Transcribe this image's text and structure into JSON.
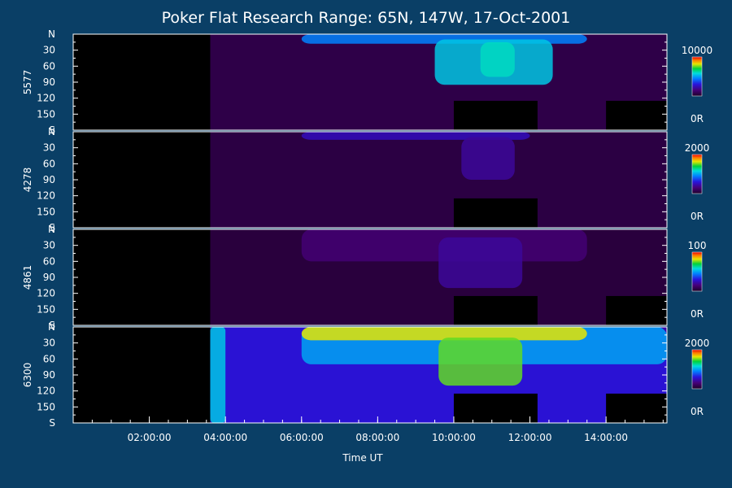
{
  "chart_data": {
    "type": "heatmap",
    "title": "Poker Flat Research Range: 65N, 147W, 17-Oct-2001",
    "xlabel": "Time UT",
    "x_range_hours": [
      0.0,
      15.6
    ],
    "x_ticks": [
      {
        "hour": 2,
        "label": "02:00:00"
      },
      {
        "hour": 4,
        "label": "04:00:00"
      },
      {
        "hour": 6,
        "label": "06:00:00"
      },
      {
        "hour": 8,
        "label": "08:00:00"
      },
      {
        "hour": 10,
        "label": "10:00:00"
      },
      {
        "hour": 12,
        "label": "12:00:00"
      },
      {
        "hour": 14,
        "label": "14:00:00"
      }
    ],
    "y_ticks": [
      "N",
      "30",
      "60",
      "90",
      "120",
      "150",
      "S"
    ],
    "y_range": [
      0,
      180
    ],
    "data_gap_end_hour": 3.6,
    "panels": [
      {
        "name": "5577",
        "cbar_max": "10000",
        "cbar_min": "0R",
        "base_level": 0.06,
        "features": [
          {
            "t0": 6.0,
            "t1": 13.5,
            "a0": 0,
            "a1": 18,
            "level": 0.45
          },
          {
            "t0": 9.5,
            "t1": 12.6,
            "a0": 10,
            "a1": 95,
            "level": 0.55
          },
          {
            "t0": 10.7,
            "t1": 11.6,
            "a0": 15,
            "a1": 80,
            "level": 0.6
          }
        ],
        "blank_blocks": [
          {
            "t0": 10.0,
            "t1": 12.2,
            "a0": 125,
            "a1": 180
          },
          {
            "t0": 14.0,
            "t1": 15.6,
            "a0": 125,
            "a1": 180
          }
        ]
      },
      {
        "name": "4278",
        "cbar_max": "2000",
        "cbar_min": "0R",
        "base_level": 0.05,
        "features": [
          {
            "t0": 6.0,
            "t1": 12.0,
            "a0": 0,
            "a1": 15,
            "level": 0.25
          },
          {
            "t0": 10.2,
            "t1": 11.6,
            "a0": 10,
            "a1": 90,
            "level": 0.2
          }
        ],
        "blank_blocks": [
          {
            "t0": 10.0,
            "t1": 12.2,
            "a0": 125,
            "a1": 180
          }
        ]
      },
      {
        "name": "4861",
        "cbar_max": "100",
        "cbar_min": "0R",
        "base_level": 0.04,
        "features": [
          {
            "t0": 6.0,
            "t1": 13.5,
            "a0": 0,
            "a1": 60,
            "level": 0.14
          },
          {
            "t0": 9.6,
            "t1": 11.8,
            "a0": 15,
            "a1": 110,
            "level": 0.2
          }
        ],
        "blank_blocks": [
          {
            "t0": 10.0,
            "t1": 12.2,
            "a0": 125,
            "a1": 180
          },
          {
            "t0": 14.0,
            "t1": 15.6,
            "a0": 125,
            "a1": 180
          }
        ]
      },
      {
        "name": "6300",
        "cbar_max": "2000",
        "cbar_min": "0R",
        "base_level": 0.22,
        "features": [
          {
            "t0": 3.6,
            "t1": 15.6,
            "a0": 0,
            "a1": 180,
            "level": 0.3
          },
          {
            "t0": 6.0,
            "t1": 15.6,
            "a0": 0,
            "a1": 70,
            "level": 0.5
          },
          {
            "t0": 6.0,
            "t1": 13.5,
            "a0": 0,
            "a1": 25,
            "level": 0.82
          },
          {
            "t0": 9.6,
            "t1": 11.8,
            "a0": 20,
            "a1": 110,
            "level": 0.75
          },
          {
            "t0": 3.6,
            "t1": 4.0,
            "a0": 0,
            "a1": 180,
            "level": 0.55
          }
        ],
        "blank_blocks": [
          {
            "t0": 10.0,
            "t1": 12.2,
            "a0": 125,
            "a1": 180
          },
          {
            "t0": 14.0,
            "t1": 15.6,
            "a0": 125,
            "a1": 180
          }
        ]
      }
    ]
  }
}
